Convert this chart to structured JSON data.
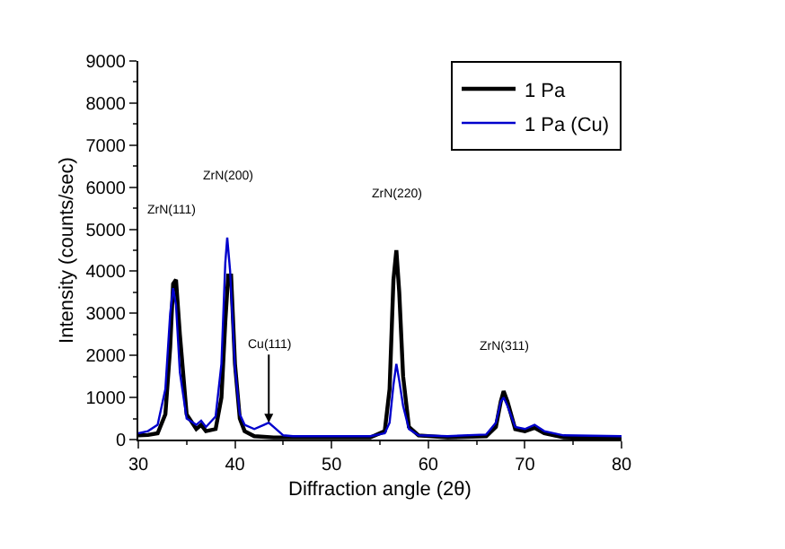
{
  "chart_data": {
    "type": "line",
    "xlabel": "Diffraction angle (2θ)",
    "ylabel": "Intensity (counts/sec)",
    "xlim": [
      30,
      80
    ],
    "xticks": [
      30,
      40,
      50,
      60,
      70,
      80
    ],
    "ylim": [
      0,
      9000
    ],
    "yticks": [
      0,
      1000,
      2000,
      3000,
      4000,
      5000,
      6000,
      7000,
      8000,
      9000
    ],
    "legend": "top right",
    "marker": "none",
    "line_style": "solid",
    "series": [
      {
        "name": "1 Pa",
        "color": "#000000",
        "x": [
          30,
          31,
          32,
          32.8,
          33.3,
          33.6,
          33.9,
          34.3,
          35,
          36,
          36.5,
          37,
          38,
          38.6,
          39.0,
          39.3,
          39.6,
          40.0,
          40.5,
          41,
          42,
          44,
          46,
          50,
          54,
          55.5,
          56,
          56.4,
          56.7,
          57,
          57.4,
          58,
          59,
          62,
          66,
          67,
          67.5,
          67.8,
          68.2,
          69,
          70,
          71,
          72,
          74,
          80
        ],
        "values": [
          100,
          110,
          150,
          600,
          2200,
          3700,
          3800,
          2500,
          600,
          250,
          350,
          200,
          250,
          1000,
          2800,
          3900,
          3900,
          1800,
          500,
          200,
          80,
          50,
          50,
          50,
          50,
          200,
          1200,
          3800,
          4500,
          3500,
          1500,
          300,
          100,
          50,
          80,
          300,
          900,
          1150,
          900,
          250,
          200,
          280,
          150,
          50,
          30
        ]
      },
      {
        "name": "1 Pa (Cu)",
        "color": "#0000cc",
        "x": [
          30,
          31,
          32,
          32.8,
          33.3,
          33.6,
          33.9,
          34.3,
          35,
          36,
          36.5,
          37,
          38,
          38.6,
          39.0,
          39.2,
          39.5,
          40.0,
          40.5,
          41,
          42,
          43,
          43.5,
          44,
          45,
          46,
          50,
          54,
          55.5,
          56,
          56.4,
          56.7,
          57,
          57.4,
          58,
          59,
          62,
          66,
          67,
          67.5,
          67.8,
          68.2,
          69,
          70,
          71,
          72,
          74,
          80
        ],
        "values": [
          150,
          200,
          350,
          1200,
          3000,
          3600,
          3200,
          1600,
          500,
          350,
          450,
          300,
          550,
          1800,
          4200,
          4800,
          4000,
          1700,
          600,
          350,
          250,
          350,
          400,
          300,
          100,
          80,
          80,
          80,
          150,
          400,
          1300,
          1800,
          1400,
          800,
          250,
          100,
          80,
          120,
          400,
          900,
          1000,
          800,
          300,
          250,
          350,
          200,
          100,
          80
        ]
      }
    ],
    "annotations": [
      "ZrN(111)",
      "ZrN(200)",
      {
        "text": "Cu(111)",
        "x": 43.5,
        "y": 400
      },
      "ZrN(220)",
      "ZrN(311)"
    ]
  }
}
